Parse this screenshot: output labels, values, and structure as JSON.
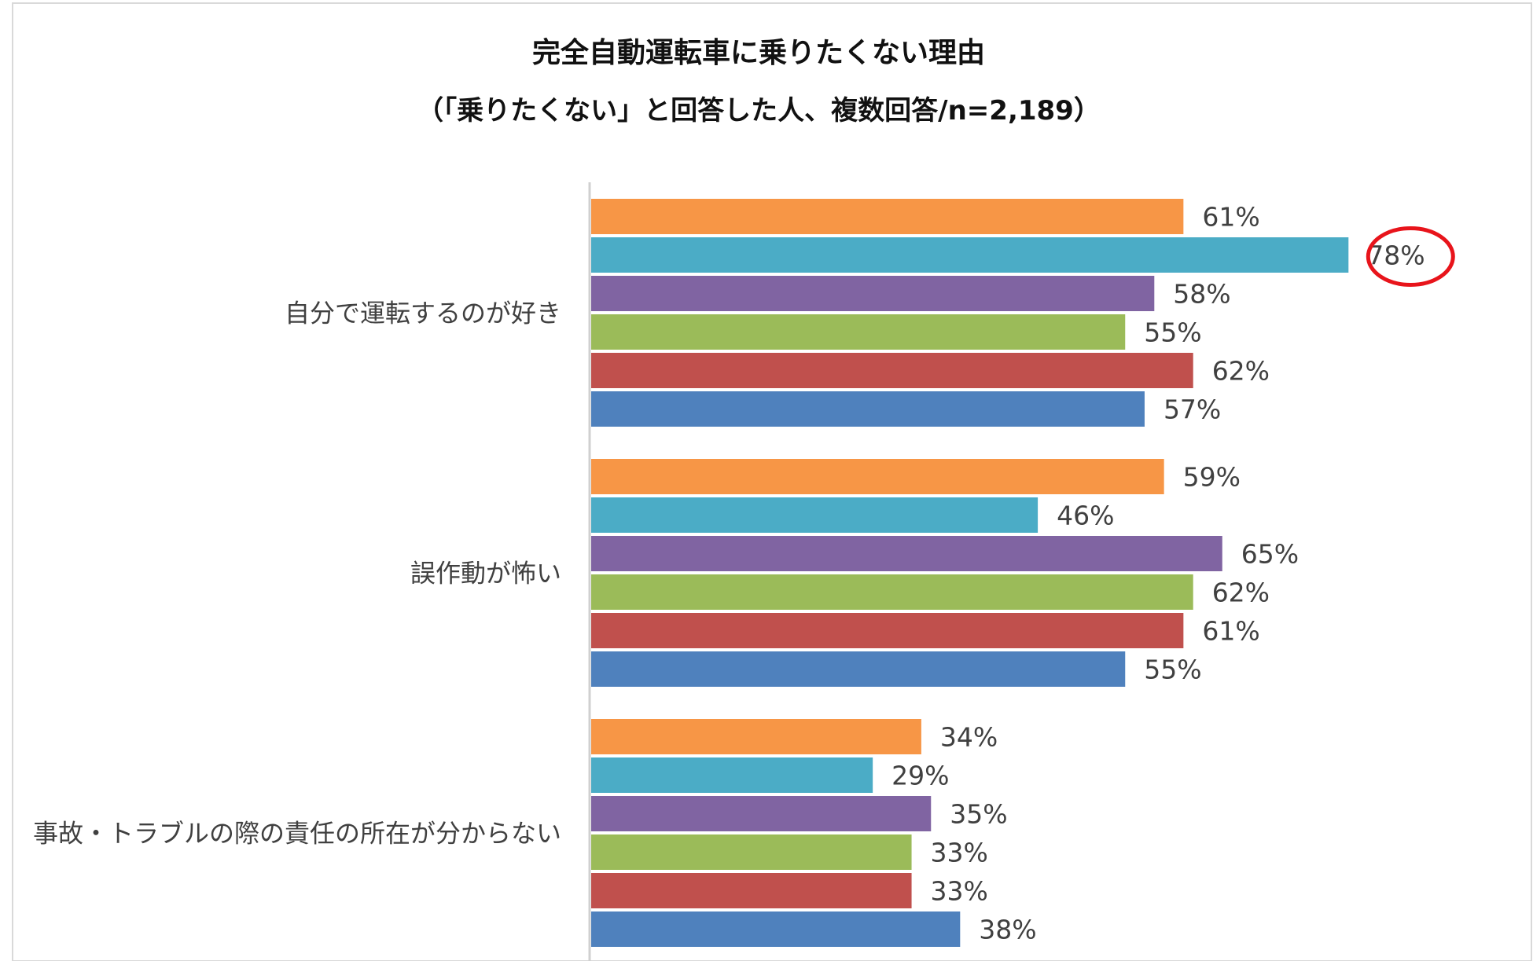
{
  "chart_data": {
    "type": "bar",
    "orientation": "horizontal",
    "title": "完全自動運転車に乗りたくない理由",
    "subtitle": "（「乗りたくない」と回答した人、複数回答/n=2,189）",
    "categories": [
      "自分で運転するのが好き",
      "誤作動が怖い",
      "事故・トラブルの際の責任の所在が分からない"
    ],
    "series": [
      {
        "name": "series-1",
        "color": "#F79646",
        "values": [
          61,
          59,
          34
        ]
      },
      {
        "name": "series-2",
        "color": "#4BACC6",
        "values": [
          78,
          46,
          29
        ]
      },
      {
        "name": "series-3",
        "color": "#8064A2",
        "values": [
          58,
          65,
          35
        ]
      },
      {
        "name": "series-4",
        "color": "#9BBB59",
        "values": [
          55,
          62,
          33
        ]
      },
      {
        "name": "series-5",
        "color": "#C0504D",
        "values": [
          62,
          61,
          33
        ]
      },
      {
        "name": "series-6",
        "color": "#4F81BD",
        "values": [
          57,
          55,
          38
        ]
      }
    ],
    "value_labels": [
      [
        "61%",
        "59%",
        "34%"
      ],
      [
        "78%",
        "46%",
        "29%"
      ],
      [
        "58%",
        "65%",
        "35%"
      ],
      [
        "55%",
        "62%",
        "33%"
      ],
      [
        "62%",
        "61%",
        "33%"
      ],
      [
        "57%",
        "55%",
        "38%"
      ]
    ],
    "xlim": [
      0,
      78
    ],
    "highlight": {
      "series_index": 1,
      "category_index": 0,
      "color": "#E8141B"
    },
    "legend": "none",
    "grid": false
  }
}
